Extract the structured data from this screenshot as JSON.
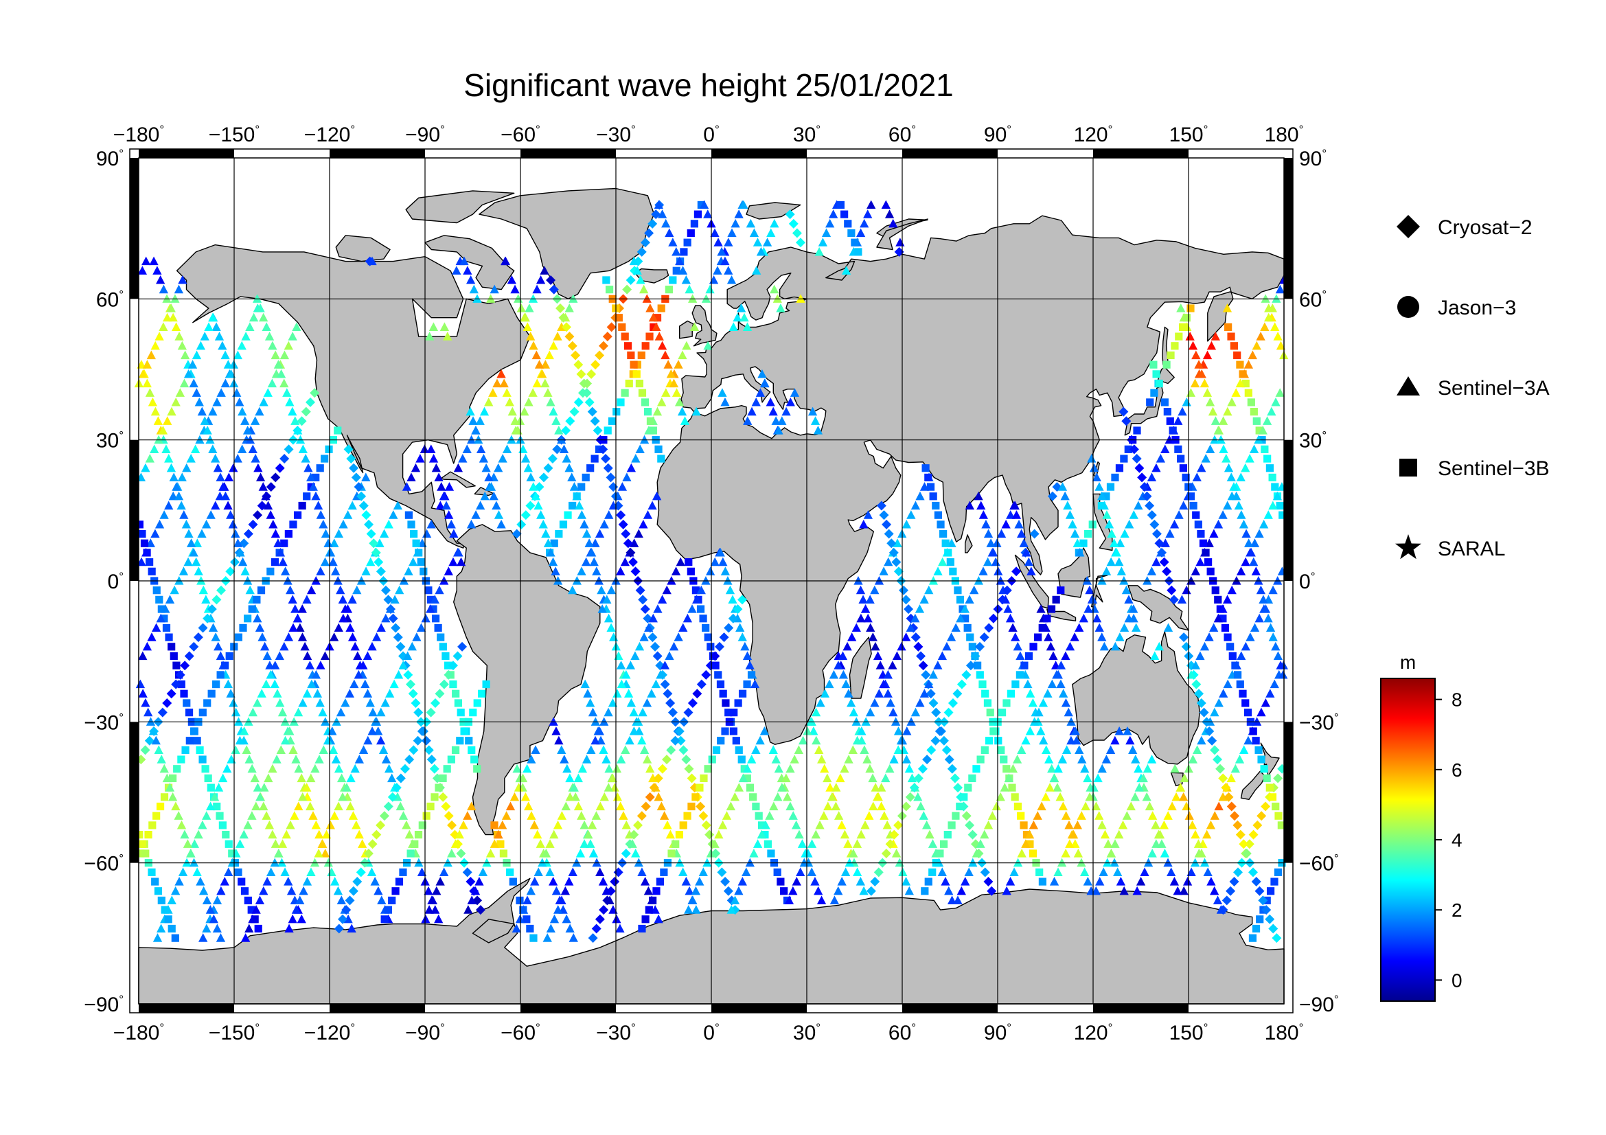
{
  "title": "Significant wave height 25/01/2021",
  "degree_symbol": "°",
  "lon_ticks": [
    "−180",
    "−150",
    "−120",
    "−90",
    "−60",
    "−30",
    "0",
    "30",
    "60",
    "90",
    "120",
    "150",
    "180"
  ],
  "lat_ticks": [
    "90",
    "60",
    "30",
    "0",
    "−30",
    "−60",
    "−90"
  ],
  "legend": [
    {
      "label": "Cryosat−2",
      "icon": "diamond-icon"
    },
    {
      "label": "Jason−3",
      "icon": "circle-icon"
    },
    {
      "label": "Sentinel−3A",
      "icon": "triangle-icon"
    },
    {
      "label": "Sentinel−3B",
      "icon": "square-icon"
    },
    {
      "label": "SARAL",
      "icon": "star-icon"
    }
  ],
  "colorbar": {
    "unit": "m",
    "labels": [
      "8",
      "6",
      "4",
      "2",
      "0"
    ],
    "range": [
      -0.6,
      8.6
    ],
    "colors": [
      "#00008f",
      "#0000ff",
      "#007fff",
      "#00ffff",
      "#7fff7f",
      "#ffff00",
      "#ff7f00",
      "#ff0000",
      "#8f0000"
    ]
  },
  "colors": {
    "land": "#bebebe",
    "ocean": "#ffffff",
    "frame": "#000000"
  }
}
